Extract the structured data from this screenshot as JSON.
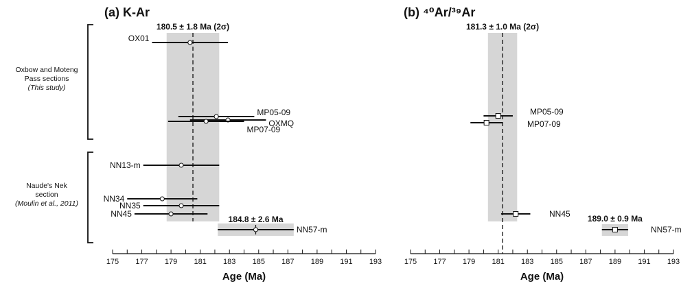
{
  "chart_data": [
    {
      "type": "scatter",
      "title": "(a) K-Ar",
      "xlabel": "Age (Ma)",
      "xlim": [
        175,
        193
      ],
      "xticks": [
        "175",
        "177",
        "179",
        "181",
        "183",
        "185",
        "187",
        "189",
        "191",
        "193"
      ],
      "reference": {
        "label": "180.5 ± 1.8 Ma (2σ)",
        "mean": 180.5,
        "err": 1.8
      },
      "second_band": {
        "label": "184.8 ± 2.6 Ma",
        "mean": 184.8,
        "err": 2.6
      },
      "groups": [
        {
          "lines": [
            "Oxbow and Moteng",
            "Pass sections",
            "(This study)"
          ]
        },
        {
          "lines": [
            "Naude's Nek",
            "section",
            "(Moulin et al., 2011)"
          ]
        }
      ],
      "points": [
        {
          "label": "OX01",
          "age": 180.3,
          "err": 2.6,
          "label_side": "left",
          "marker": "circle"
        },
        {
          "label": "MP05-09",
          "age": 182.1,
          "err": 2.6,
          "label_side": "right",
          "marker": "circle"
        },
        {
          "label": "OXMQ",
          "age": 182.9,
          "err": 2.6,
          "label_side": "right",
          "marker": "circle"
        },
        {
          "label": "MP07-09",
          "age": 181.4,
          "err": 2.6,
          "label_side": "right",
          "marker": "circle"
        },
        {
          "label": "NN13-m",
          "age": 179.7,
          "err": 2.6,
          "label_side": "left",
          "marker": "circle"
        },
        {
          "label": "NN34",
          "age": 178.4,
          "err": 2.4,
          "label_side": "left",
          "marker": "circle"
        },
        {
          "label": "NN35",
          "age": 179.7,
          "err": 2.6,
          "label_side": "left",
          "marker": "circle"
        },
        {
          "label": "NN45",
          "age": 179.0,
          "err": 2.5,
          "label_side": "left",
          "marker": "circle"
        },
        {
          "label": "NN57-m",
          "age": 184.8,
          "err": 2.6,
          "label_side": "right",
          "marker": "cross"
        }
      ]
    },
    {
      "type": "scatter",
      "title": "(b) ⁴⁰Ar/³⁹Ar",
      "xlabel": "Age (Ma)",
      "xlim": [
        175,
        193
      ],
      "xticks": [
        "175",
        "177",
        "179",
        "181",
        "183",
        "185",
        "187",
        "189",
        "191",
        "193"
      ],
      "reference": {
        "label": "181.3 ± 1.0 Ma (2σ)",
        "mean": 181.3,
        "err": 1.0
      },
      "second_band": {
        "label": "189.0 ± 0.9 Ma",
        "mean": 189.0,
        "err": 0.9
      },
      "points": [
        {
          "label": "MP05-09",
          "age": 181.0,
          "err": 1.0,
          "label_side": "right",
          "marker": "square"
        },
        {
          "label": "MP07-09",
          "age": 180.2,
          "err": 1.1,
          "label_side": "right",
          "marker": "square"
        },
        {
          "label": "NN45",
          "age": 182.2,
          "err": 1.0,
          "label_side": "right",
          "marker": "square"
        },
        {
          "label": "NN57-m",
          "age": 189.0,
          "err": 0.9,
          "label_side": "right",
          "marker": "square"
        }
      ]
    }
  ]
}
